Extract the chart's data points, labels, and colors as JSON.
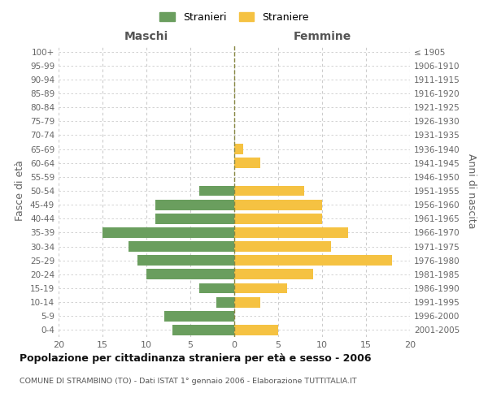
{
  "age_groups": [
    "0-4",
    "5-9",
    "10-14",
    "15-19",
    "20-24",
    "25-29",
    "30-34",
    "35-39",
    "40-44",
    "45-49",
    "50-54",
    "55-59",
    "60-64",
    "65-69",
    "70-74",
    "75-79",
    "80-84",
    "85-89",
    "90-94",
    "95-99",
    "100+"
  ],
  "birth_years": [
    "2001-2005",
    "1996-2000",
    "1991-1995",
    "1986-1990",
    "1981-1985",
    "1976-1980",
    "1971-1975",
    "1966-1970",
    "1961-1965",
    "1956-1960",
    "1951-1955",
    "1946-1950",
    "1941-1945",
    "1936-1940",
    "1931-1935",
    "1926-1930",
    "1921-1925",
    "1916-1920",
    "1911-1915",
    "1906-1910",
    "≤ 1905"
  ],
  "maschi": [
    7,
    8,
    2,
    4,
    10,
    11,
    12,
    15,
    9,
    9,
    4,
    0,
    0,
    0,
    0,
    0,
    0,
    0,
    0,
    0,
    0
  ],
  "femmine": [
    5,
    0,
    3,
    6,
    9,
    18,
    11,
    13,
    10,
    10,
    8,
    0,
    3,
    1,
    0,
    0,
    0,
    0,
    0,
    0,
    0
  ],
  "color_maschi": "#6a9e5e",
  "color_femmine": "#f5c242",
  "grid_color": "#cccccc",
  "title": "Popolazione per cittadinanza straniera per età e sesso - 2006",
  "subtitle": "COMUNE DI STRAMBINO (TO) - Dati ISTAT 1° gennaio 2006 - Elaborazione TUTTITALIA.IT",
  "ylabel_left": "Fasce di età",
  "ylabel_right": "Anni di nascita",
  "xlabel_left": "Maschi",
  "xlabel_right": "Femmine",
  "legend_maschi": "Stranieri",
  "legend_femmine": "Straniere",
  "xlim": 20
}
